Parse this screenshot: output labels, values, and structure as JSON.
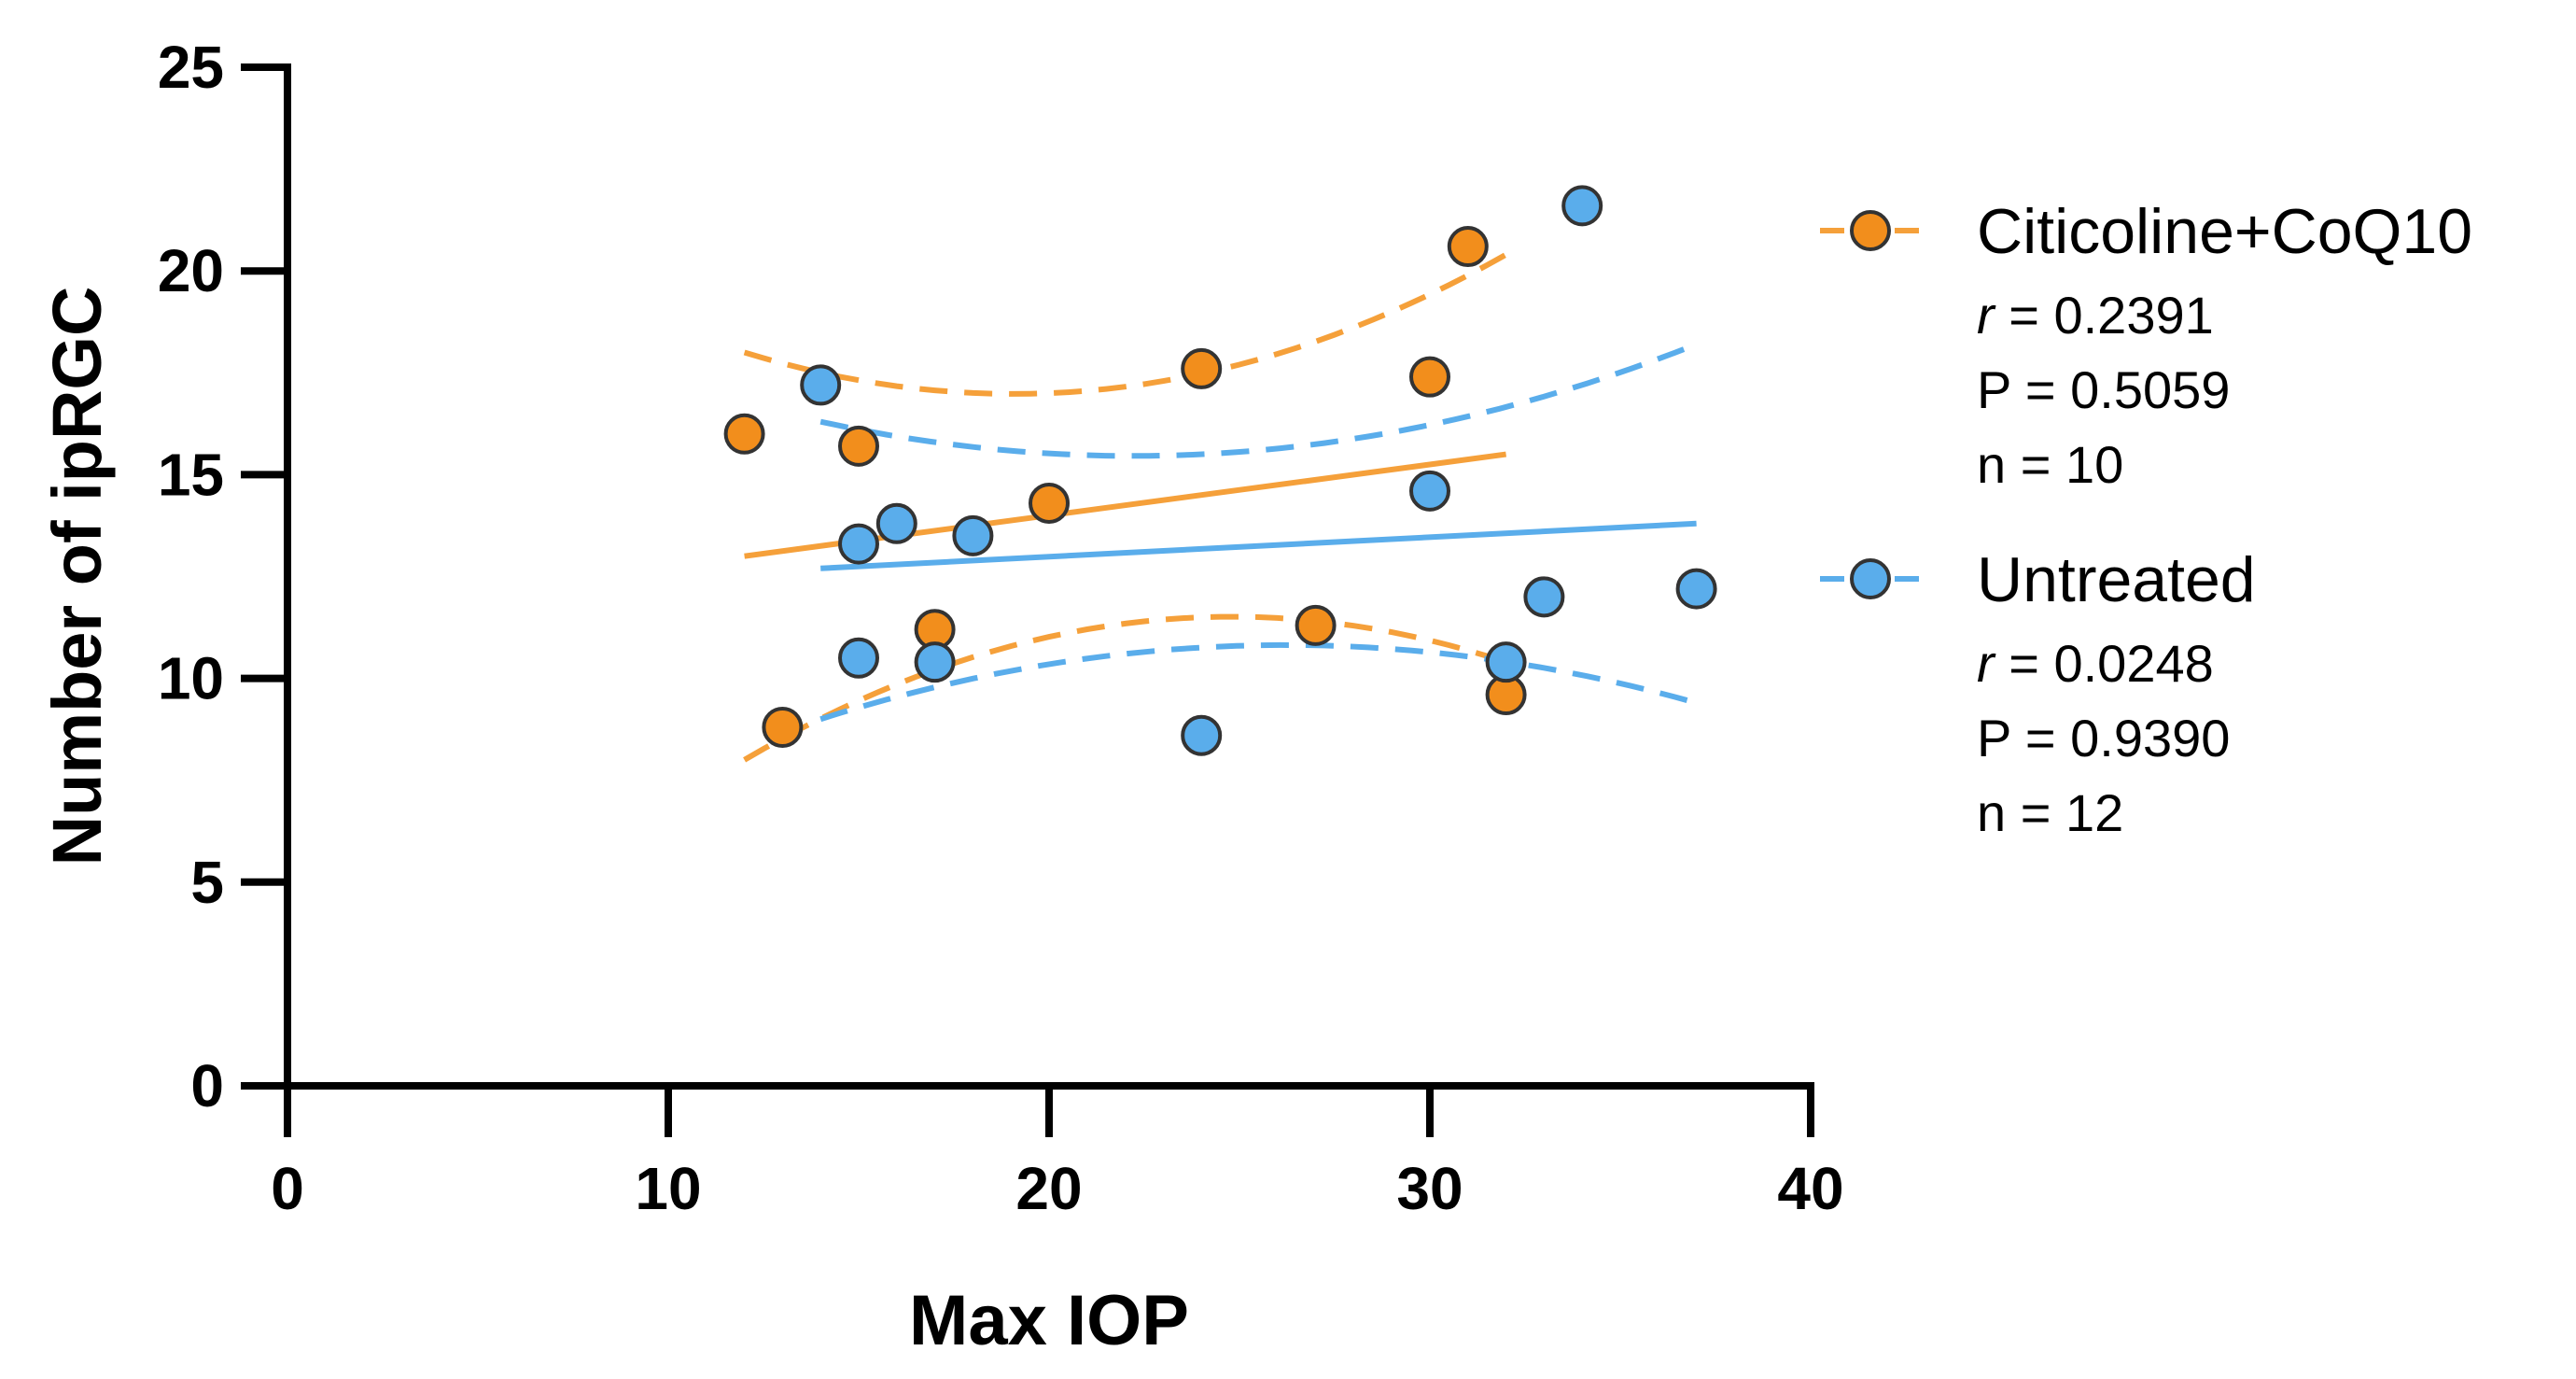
{
  "chart_data": {
    "type": "scatter",
    "title": "",
    "xlabel": "Max IOP",
    "ylabel": "Number of ipRGC",
    "xlim": [
      0,
      40
    ],
    "ylim": [
      0,
      25
    ],
    "xticks": [
      "0",
      "10",
      "20",
      "30",
      "40"
    ],
    "yticks": [
      "0",
      "5",
      "10",
      "15",
      "20",
      "25"
    ],
    "legend_position": "right",
    "series": [
      {
        "name": "Citicoline+CoQ10",
        "color": "#F5A03A",
        "marker_fill": "#F28E1C",
        "stat_r_prefix": "r",
        "stat_r_value": " = 0.2391",
        "stat_p": "P = 0.5059",
        "stat_n": "n = 10",
        "points": [
          {
            "x": 12,
            "y": 16.0
          },
          {
            "x": 13,
            "y": 8.8
          },
          {
            "x": 15,
            "y": 15.7
          },
          {
            "x": 17,
            "y": 11.2
          },
          {
            "x": 20,
            "y": 14.3
          },
          {
            "x": 24,
            "y": 17.6
          },
          {
            "x": 27,
            "y": 11.3
          },
          {
            "x": 30,
            "y": 17.4
          },
          {
            "x": 31,
            "y": 20.6
          },
          {
            "x": 32,
            "y": 9.6
          }
        ],
        "fit": {
          "x0": 12,
          "y0": 13.0,
          "x1": 32,
          "y1": 15.5
        },
        "ci_upper": {
          "x0": 12,
          "x_mid": 20,
          "x1": 32,
          "y0": 18.0,
          "y_mid": 17.0,
          "y1": 20.4
        },
        "ci_lower": {
          "x0": 12,
          "x_mid": 24,
          "x1": 32,
          "y0": 8.0,
          "y_mid": 11.5,
          "y1": 10.4
        }
      },
      {
        "name": "Untreated",
        "color": "#5AADEB",
        "marker_fill": "#5AADEB",
        "stat_r_prefix": "r",
        "stat_r_value": " = 0.0248",
        "stat_p": "P = 0.9390",
        "stat_n": "n = 12",
        "points": [
          {
            "x": 14,
            "y": 17.2
          },
          {
            "x": 15,
            "y": 13.3
          },
          {
            "x": 15,
            "y": 10.5
          },
          {
            "x": 16,
            "y": 13.8
          },
          {
            "x": 17,
            "y": 10.4
          },
          {
            "x": 18,
            "y": 13.5
          },
          {
            "x": 24,
            "y": 8.6
          },
          {
            "x": 30,
            "y": 14.6
          },
          {
            "x": 32,
            "y": 10.4
          },
          {
            "x": 33,
            "y": 12.0
          },
          {
            "x": 34,
            "y": 21.6
          },
          {
            "x": 37,
            "y": 12.2
          }
        ],
        "fit": {
          "x0": 14,
          "y0": 12.7,
          "x1": 37,
          "y1": 13.8
        },
        "ci_upper": {
          "x0": 14,
          "x_mid": 24,
          "x1": 37,
          "y0": 16.3,
          "y_mid": 15.5,
          "y1": 18.2
        },
        "ci_lower": {
          "x0": 14,
          "x_mid": 25,
          "x1": 37,
          "y0": 9.0,
          "y_mid": 10.8,
          "y1": 9.4
        }
      }
    ]
  }
}
